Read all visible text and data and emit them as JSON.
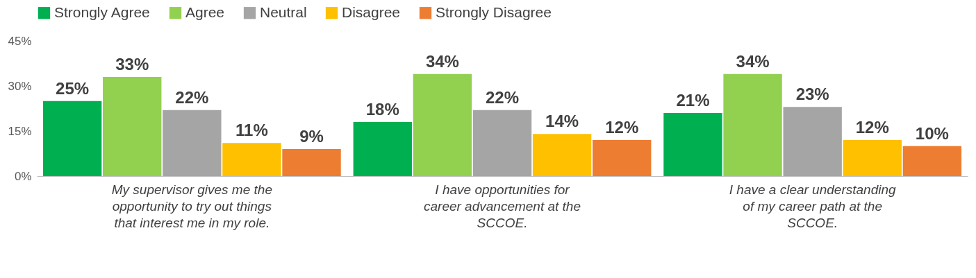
{
  "chart_data": {
    "type": "bar",
    "categories": [
      "My supervisor gives me the opportunity to try out things that interest me in my role.",
      "I have opportunities for career advancement at the SCCOE.",
      "I have a clear understanding of my career path at the SCCOE."
    ],
    "series": [
      {
        "name": "Strongly Agree",
        "color": "#00b050",
        "values": [
          25,
          18,
          21
        ],
        "value_labels": [
          "25%",
          "18%",
          "21%"
        ]
      },
      {
        "name": "Agree",
        "color": "#92d050",
        "values": [
          33,
          34,
          34
        ],
        "value_labels": [
          "33%",
          "34%",
          "34%"
        ]
      },
      {
        "name": "Neutral",
        "color": "#a5a5a5",
        "values": [
          22,
          22,
          23
        ],
        "value_labels": [
          "22%",
          "22%",
          "23%"
        ]
      },
      {
        "name": "Disagree",
        "color": "#ffc000",
        "values": [
          11,
          14,
          12
        ],
        "value_labels": [
          "11%",
          "14%",
          "12%"
        ]
      },
      {
        "name": "Strongly Disagree",
        "color": "#ed7d31",
        "values": [
          9,
          12,
          10
        ],
        "value_labels": [
          "9%",
          "12%",
          "10%"
        ]
      }
    ],
    "ylim": [
      0,
      45
    ],
    "yticks": [
      {
        "value": 0,
        "label": "0%"
      },
      {
        "value": 15,
        "label": "15%"
      },
      {
        "value": 30,
        "label": "30%"
      },
      {
        "value": 45,
        "label": "45%"
      }
    ],
    "grid": false,
    "legend": "top"
  }
}
